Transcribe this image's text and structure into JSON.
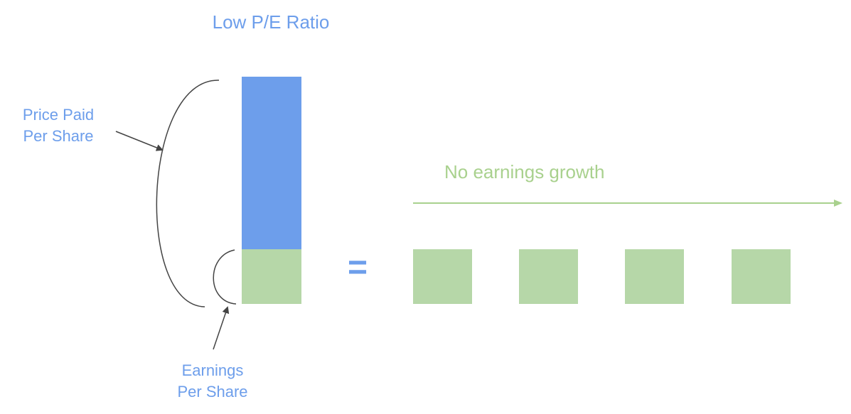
{
  "title": "Low P/E Ratio",
  "price_label": {
    "lines": [
      "Price Paid",
      "Per Share"
    ]
  },
  "earnings_label": {
    "lines": [
      "Earnings",
      "Per Share"
    ]
  },
  "equals": "=",
  "growth_label": "No earnings growth"
}
